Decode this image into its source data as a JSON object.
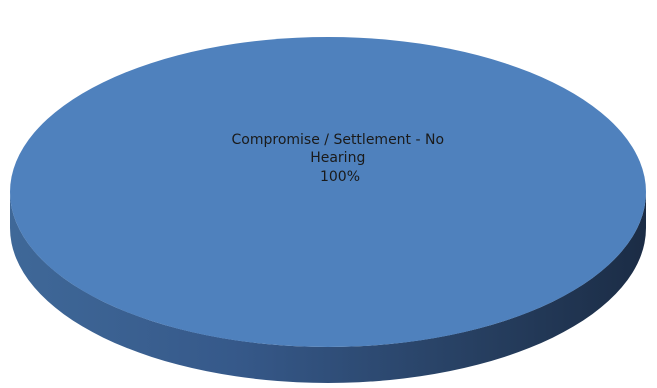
{
  "chart_data": {
    "type": "pie",
    "style": "3d",
    "slices": [
      {
        "label": "Compromise / Settlement - No Hearing",
        "label_lines": [
          "Compromise / Settlement - No",
          "Hearing"
        ],
        "percent_label": "100%",
        "value": 100,
        "color": "#4f81bd"
      }
    ],
    "colors": {
      "top": "#4f81bd",
      "side_light": "#4a76ad",
      "side_dark": "#1f334f"
    }
  }
}
